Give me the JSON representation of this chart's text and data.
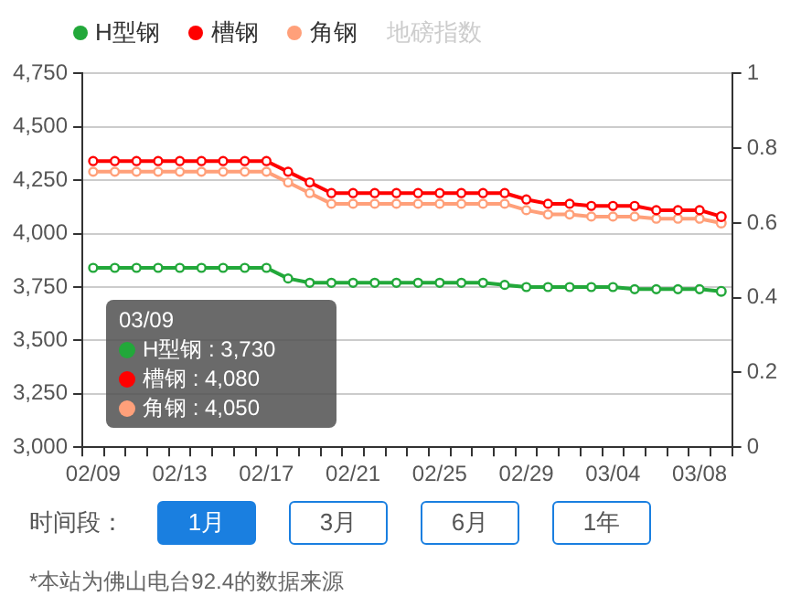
{
  "chart_data": {
    "type": "line",
    "categories": [
      "02/09",
      null,
      null,
      null,
      "02/13",
      null,
      null,
      null,
      "02/17",
      null,
      null,
      null,
      "02/21",
      null,
      null,
      null,
      "02/25",
      null,
      null,
      null,
      "02/29",
      null,
      null,
      null,
      "03/04",
      null,
      null,
      null,
      "03/08",
      null
    ],
    "series": [
      {
        "name": "H型钢",
        "color": "#22a83a",
        "values": [
          3840,
          3840,
          3840,
          3840,
          3840,
          3840,
          3840,
          3840,
          3840,
          3790,
          3770,
          3770,
          3770,
          3770,
          3770,
          3770,
          3770,
          3770,
          3770,
          3760,
          3750,
          3750,
          3750,
          3750,
          3750,
          3740,
          3740,
          3740,
          3740,
          3730
        ]
      },
      {
        "name": "槽钢",
        "color": "#ff0000",
        "values": [
          4340,
          4340,
          4340,
          4340,
          4340,
          4340,
          4340,
          4340,
          4340,
          4290,
          4240,
          4190,
          4190,
          4190,
          4190,
          4190,
          4190,
          4190,
          4190,
          4190,
          4160,
          4140,
          4140,
          4130,
          4130,
          4130,
          4110,
          4110,
          4110,
          4080
        ]
      },
      {
        "name": "角钢",
        "color": "#ffa07a",
        "values": [
          4290,
          4290,
          4290,
          4290,
          4290,
          4290,
          4290,
          4290,
          4290,
          4240,
          4190,
          4140,
          4140,
          4140,
          4140,
          4140,
          4140,
          4140,
          4140,
          4140,
          4110,
          4090,
          4090,
          4080,
          4080,
          4080,
          4070,
          4070,
          4070,
          4050
        ]
      },
      {
        "name": "地磅指数",
        "color": "#cccccc",
        "axis": "y2",
        "values": [
          null,
          null,
          null,
          null,
          null,
          null,
          null,
          null,
          null,
          null,
          null,
          null,
          null,
          null,
          null,
          null,
          null,
          null,
          null,
          null,
          null,
          null,
          null,
          null,
          null,
          null,
          null,
          null,
          null,
          null
        ]
      }
    ],
    "ylim": [
      3000,
      4750
    ],
    "yticks": [
      {
        "value": 3000,
        "label": "3,000"
      },
      {
        "value": 3250,
        "label": "3,250"
      },
      {
        "value": 3500,
        "label": "3,500"
      },
      {
        "value": 3750,
        "label": "3,750"
      },
      {
        "value": 4000,
        "label": "4,000"
      },
      {
        "value": 4250,
        "label": "4,250"
      },
      {
        "value": 4500,
        "label": "4,500"
      },
      {
        "value": 4750,
        "label": "4,750"
      }
    ],
    "y2lim": [
      0,
      1
    ],
    "y2ticks": [
      0,
      0.2,
      0.4,
      0.6,
      0.8,
      1
    ],
    "grid": "y",
    "legend": "top left",
    "marker": "circle",
    "line_style": "solid",
    "annotations": [
      "03/09",
      "H型钢 : 3,730",
      "槽钢 : 4,080",
      "角钢 : 4,050",
      "时间段：",
      "1月",
      "3月",
      "6月",
      "1年",
      "*本站为佛山电台92.4的数据来源"
    ]
  }
}
